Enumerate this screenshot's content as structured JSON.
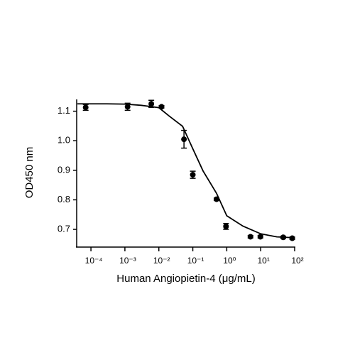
{
  "chart_data": {
    "type": "scatter",
    "x_label": "Human Angiopietin-4 (μg/mL)",
    "y_label": "OD450 nm",
    "log_x": true,
    "xlim": [
      3.8e-05,
      100
    ],
    "xticks": [
      {
        "value": 0.0001,
        "label": "10⁻⁴"
      },
      {
        "value": 0.001,
        "label": "10⁻³"
      },
      {
        "value": 0.01,
        "label": "10⁻²"
      },
      {
        "value": 0.1,
        "label": "10⁻¹"
      },
      {
        "value": 1,
        "label": "10⁰"
      },
      {
        "value": 10,
        "label": "10¹"
      },
      {
        "value": 100,
        "label": "10²"
      }
    ],
    "ylim": [
      0.64,
      1.14
    ],
    "yticks": [
      {
        "value": 0.7,
        "label": "0.7"
      },
      {
        "value": 0.8,
        "label": "0.8"
      },
      {
        "value": 0.9,
        "label": "0.9"
      },
      {
        "value": 1.0,
        "label": "1.0"
      },
      {
        "value": 1.1,
        "label": "1.1"
      }
    ],
    "series": [
      {
        "color": "#000000",
        "marker": "circle",
        "x": [
          7e-05,
          0.0012,
          0.006,
          0.012,
          0.055,
          0.1,
          0.5,
          0.95,
          5,
          9.8,
          46,
          85
        ],
        "values": [
          1.113,
          1.115,
          1.125,
          1.115,
          1.005,
          0.885,
          0.802,
          0.71,
          0.675,
          0.675,
          0.673,
          0.67
        ],
        "errors": [
          0.01,
          0.012,
          0.012,
          0.004,
          0.03,
          0.012,
          0.004,
          0.01,
          0.004,
          0.004,
          0.004,
          0.004
        ]
      },
      {
        "color": "#000000",
        "line": true,
        "x": [
          4e-05,
          0.0001,
          0.0003,
          0.001,
          0.003,
          0.01,
          0.02,
          0.05,
          0.1,
          0.2,
          0.5,
          1,
          3,
          10,
          30,
          100
        ],
        "values": [
          1.125,
          1.125,
          1.125,
          1.124,
          1.12,
          1.112,
          1.084,
          1.049,
          0.973,
          0.898,
          0.822,
          0.746,
          0.711,
          0.685,
          0.6745,
          0.6715
        ]
      }
    ]
  }
}
